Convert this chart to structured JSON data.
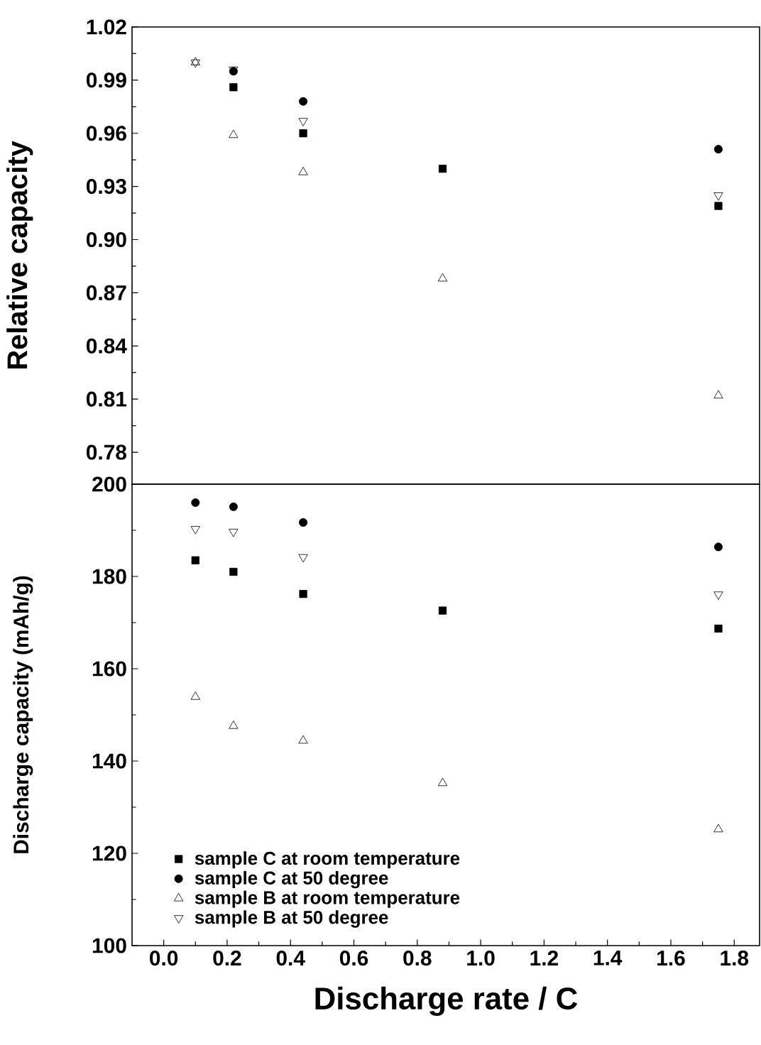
{
  "chart_data": [
    {
      "type": "scatter",
      "ylabel": "Relative capacity",
      "x": [
        0.1,
        0.22,
        0.44,
        0.88,
        1.75
      ],
      "xlim": [
        -0.1,
        1.88
      ],
      "ylim": [
        0.762,
        1.02
      ],
      "tick_labels": "y",
      "yticks": [
        {
          "value": 0.78,
          "label": "0.78"
        },
        {
          "value": 0.81,
          "label": "0.81"
        },
        {
          "value": 0.84,
          "label": "0.84"
        },
        {
          "value": 0.87,
          "label": "0.87"
        },
        {
          "value": 0.9,
          "label": "0.90"
        },
        {
          "value": 0.93,
          "label": "0.93"
        },
        {
          "value": 0.96,
          "label": "0.96"
        },
        {
          "value": 0.99,
          "label": "0.99"
        },
        {
          "value": 1.02,
          "label": "1.02"
        }
      ],
      "series": [
        {
          "color": "#000000",
          "marker": "square",
          "values": [
            null,
            0.986,
            0.96,
            0.94,
            0.919
          ]
        },
        {
          "color": "#000000",
          "marker": "circle",
          "values": [
            null,
            0.995,
            0.978,
            null,
            0.951
          ]
        },
        {
          "color": "#000000",
          "marker": "triangle",
          "values": [
            1.0,
            0.959,
            0.938,
            0.878,
            0.812
          ]
        },
        {
          "color": "#000000",
          "marker": "triangle-down",
          "values": [
            1.0,
            0.996,
            0.967,
            null,
            0.925
          ]
        }
      ]
    },
    {
      "type": "scatter",
      "xlabel": "Discharge rate / C",
      "ylabel": "Discharge capacity (mAh/g)",
      "x": [
        0.1,
        0.22,
        0.44,
        0.88,
        1.75
      ],
      "xlim": [
        -0.1,
        1.88
      ],
      "ylim": [
        100,
        200
      ],
      "legend": "bottom left",
      "xticks": [
        {
          "value": 0,
          "label": "0.0"
        },
        {
          "value": 0.2,
          "label": "0.2"
        },
        {
          "value": 0.4,
          "label": "0.4"
        },
        {
          "value": 0.6,
          "label": "0.6"
        },
        {
          "value": 0.8,
          "label": "0.8"
        },
        {
          "value": 1.0,
          "label": "1.0"
        },
        {
          "value": 1.2,
          "label": "1.2"
        },
        {
          "value": 1.4,
          "label": "1.4"
        },
        {
          "value": 1.6,
          "label": "1.6"
        },
        {
          "value": 1.8,
          "label": "1.8"
        }
      ],
      "yticks": [
        100,
        120,
        140,
        160,
        180,
        200
      ],
      "series": [
        {
          "name": "sample C at room temperature",
          "color": "#000000",
          "marker": "square",
          "values": [
            183.5,
            181.0,
            176.2,
            172.6,
            168.7
          ]
        },
        {
          "name": "sample C at 50 degree",
          "color": "#000000",
          "marker": "circle",
          "values": [
            196.0,
            195.1,
            191.7,
            null,
            186.4
          ]
        },
        {
          "name": "sample B at room temperature",
          "color": "#000000",
          "marker": "triangle",
          "values": [
            153.9,
            147.6,
            144.4,
            135.2,
            125.2
          ]
        },
        {
          "name": "sample B at 50 degree",
          "color": "#000000",
          "marker": "triangle-down",
          "values": [
            190.3,
            189.7,
            184.2,
            null,
            176.1
          ]
        }
      ]
    }
  ]
}
